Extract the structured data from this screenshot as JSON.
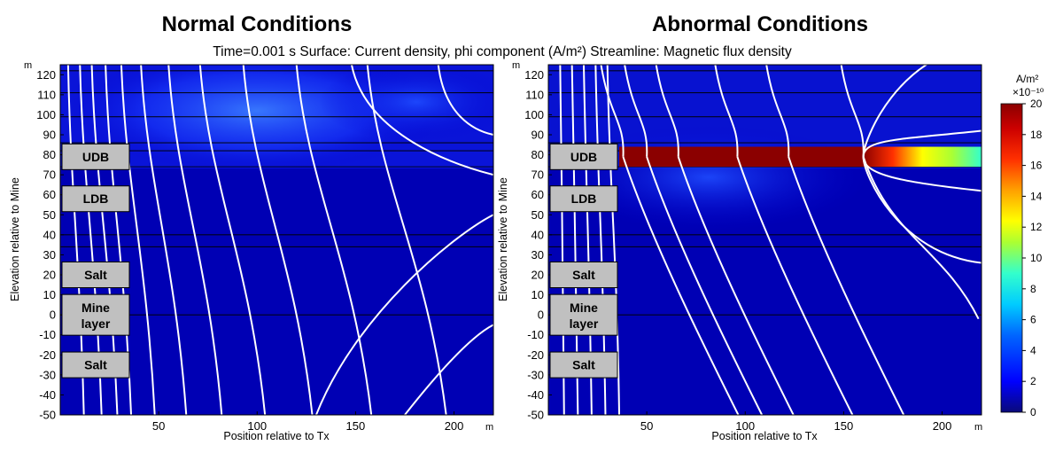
{
  "figure": {
    "subtitle": "Time=0.001 s   Surface: Current density, phi component (A/m²)   Streamline: Magnetic flux density"
  },
  "chart_data": [
    {
      "type": "heatmap",
      "title": "Normal Conditions",
      "xlabel": "Position relative to Tx",
      "ylabel": "Elevation relative to Mine",
      "x_unit": "m",
      "y_unit": "m",
      "xlim": [
        0,
        220
      ],
      "ylim": [
        -50,
        125
      ],
      "xticks": [
        50,
        100,
        150,
        200
      ],
      "yticks": [
        120,
        110,
        100,
        90,
        80,
        70,
        60,
        50,
        40,
        30,
        20,
        10,
        0,
        -10,
        -20,
        -30,
        -40,
        -50
      ],
      "layer_boundaries_y": [
        122,
        111,
        99,
        86,
        82,
        74,
        40,
        34,
        0
      ],
      "layer_labels": [
        {
          "text": "UDB",
          "y_center": 79
        },
        {
          "text": "LDB",
          "y_center": 58
        },
        {
          "text": "Salt",
          "y_center": 20
        },
        {
          "text": "Mine layer",
          "y_center": 0
        },
        {
          "text": "Salt",
          "y_center": -25
        }
      ],
      "surface_note": "Current density highest near surface layers (y 74 to 125) toward x 80-200; background low",
      "streamlines": [
        {
          "x_bottom": 12,
          "x_top": 4
        },
        {
          "x_bottom": 21,
          "x_top": 10
        },
        {
          "x_bottom": 29,
          "x_top": 16
        },
        {
          "x_bottom": 36,
          "x_top": 23
        },
        {
          "x_bottom": 48,
          "x_top": 31
        },
        {
          "x_bottom": 64,
          "x_top": 41
        },
        {
          "x_bottom": 82,
          "x_top": 55
        },
        {
          "x_bottom": 104,
          "x_top": 71
        },
        {
          "x_bottom": 128,
          "x_top": 93
        },
        {
          "x_bottom": 158,
          "x_top": 120
        },
        {
          "x_bottom": 196,
          "x_top": 156
        }
      ]
    },
    {
      "type": "heatmap",
      "title": "Abnormal Conditions",
      "xlabel": "Position relative to Tx",
      "ylabel": "Elevation relative to Mine",
      "x_unit": "m",
      "y_unit": "m",
      "xlim": [
        0,
        220
      ],
      "ylim": [
        -50,
        125
      ],
      "xticks": [
        50,
        100,
        150,
        200
      ],
      "yticks": [
        120,
        110,
        100,
        90,
        80,
        70,
        60,
        50,
        40,
        30,
        20,
        10,
        0,
        -10,
        -20,
        -30,
        -40,
        -50
      ],
      "layer_boundaries_y": [
        122,
        111,
        99,
        86,
        82,
        74,
        40,
        34,
        0
      ],
      "layer_labels": [
        {
          "text": "UDB",
          "y_center": 79
        },
        {
          "text": "LDB",
          "y_center": 58
        },
        {
          "text": "Salt",
          "y_center": 20
        },
        {
          "text": "Mine layer",
          "y_center": 0
        },
        {
          "text": "Salt",
          "y_center": -25
        }
      ],
      "anomaly_band": {
        "y_range": [
          74,
          84
        ],
        "x_range": [
          36,
          220
        ],
        "color_stops": [
          {
            "x": 36,
            "value": 20
          },
          {
            "x": 160,
            "value": 20
          },
          {
            "x": 175,
            "value": 17
          },
          {
            "x": 190,
            "value": 13
          },
          {
            "x": 205,
            "value": 11
          },
          {
            "x": 220,
            "value": 10
          }
        ]
      },
      "streamlines": [
        {
          "x_bottom": 8,
          "x_top": 6
        },
        {
          "x_bottom": 15,
          "x_top": 12
        },
        {
          "x_bottom": 22,
          "x_top": 18
        },
        {
          "x_bottom": 29,
          "x_top": 24
        },
        {
          "x_bottom": 36,
          "x_top": 30
        }
      ],
      "bow_lines": [
        {
          "x_vertex": 38,
          "y_top": 125,
          "y_bottom": -50
        },
        {
          "x_vertex": 50,
          "y_top": 125,
          "y_bottom": -50
        },
        {
          "x_vertex": 66,
          "y_top": 125,
          "y_bottom": -50
        },
        {
          "x_vertex": 96,
          "y_top": 125,
          "y_bottom": -50
        },
        {
          "x_vertex": 122,
          "y_top": 125,
          "y_bottom": -50
        },
        {
          "x_vertex": 160,
          "y_top": 125,
          "y_bottom": -2
        }
      ],
      "inner_loops": [
        {
          "x_vertex": 160,
          "y_upper": 135,
          "y_lower": 26
        },
        {
          "x_vertex": 160,
          "y_upper": 92,
          "y_lower": 62
        }
      ]
    }
  ],
  "colorbar": {
    "unit": "A/m²",
    "scale": "×10⁻¹⁰",
    "min": 0,
    "max": 20,
    "ticks": [
      20,
      18,
      16,
      14,
      12,
      10,
      8,
      6,
      4,
      2,
      0
    ],
    "colormap": "rainbow",
    "colors": [
      "#00008b",
      "#0000ff",
      "#00aaff",
      "#00ffff",
      "#80ff40",
      "#ffff00",
      "#ffa500",
      "#ff3000",
      "#b00000",
      "#800000"
    ]
  }
}
